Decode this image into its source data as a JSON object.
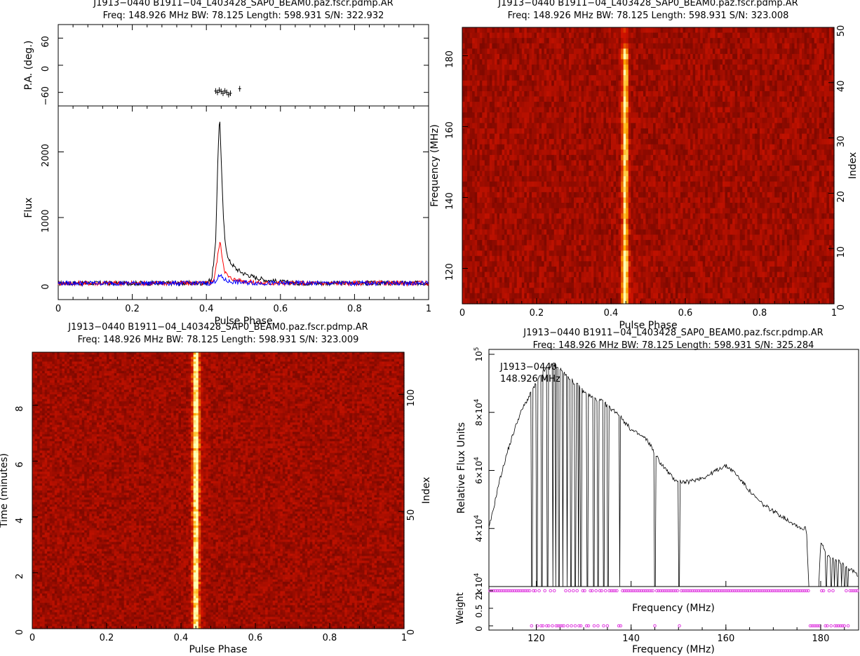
{
  "chart_data": [
    {
      "type": "line",
      "panel": "profile",
      "title": "J1913−0440  B1911−04_L403428_SAP0_BEAM0.paz.fscr.pdmp.AR",
      "subtitle": "Freq:  148.926  MHz  BW:  78.125  Length:  598.931  S/N:  322.932",
      "xlabel": "Pulse Phase",
      "pa_ylabel": "P.A. (deg.)",
      "pa_ticks": [
        "60",
        "0",
        "−60"
      ],
      "pa_ylim": [
        -90,
        90
      ],
      "pa_points": [
        [
          0.425,
          -57
        ],
        [
          0.43,
          -60
        ],
        [
          0.435,
          -55
        ],
        [
          0.44,
          -58
        ],
        [
          0.445,
          -62
        ],
        [
          0.45,
          -57
        ],
        [
          0.455,
          -60
        ],
        [
          0.46,
          -65
        ],
        [
          0.465,
          -62
        ],
        [
          0.49,
          -52
        ]
      ],
      "ylabel": "Flux",
      "ylim": [
        -250,
        2700
      ],
      "xlim": [
        0,
        1
      ],
      "x_ticks": [
        "0",
        "0.2",
        "0.4",
        "0.6",
        "0.8",
        "1"
      ],
      "y_ticks": [
        "0",
        "1000",
        "2000"
      ],
      "series": [
        {
          "color": "#000000",
          "points": [
            [
              0,
              0
            ],
            [
              0.4,
              0
            ],
            [
              0.415,
              80
            ],
            [
              0.425,
              600
            ],
            [
              0.432,
              2100
            ],
            [
              0.436,
              2550
            ],
            [
              0.44,
              1900
            ],
            [
              0.445,
              1100
            ],
            [
              0.45,
              650
            ],
            [
              0.46,
              350
            ],
            [
              0.48,
              220
            ],
            [
              0.5,
              150
            ],
            [
              0.53,
              90
            ],
            [
              0.56,
              50
            ],
            [
              0.6,
              20
            ],
            [
              0.65,
              0
            ],
            [
              1,
              0
            ]
          ]
        },
        {
          "color": "#ff0000",
          "points": [
            [
              0,
              0
            ],
            [
              0.41,
              0
            ],
            [
              0.42,
              60
            ],
            [
              0.428,
              300
            ],
            [
              0.436,
              640
            ],
            [
              0.44,
              520
            ],
            [
              0.445,
              320
            ],
            [
              0.45,
              180
            ],
            [
              0.46,
              90
            ],
            [
              0.48,
              50
            ],
            [
              0.52,
              20
            ],
            [
              0.55,
              0
            ],
            [
              1,
              0
            ]
          ]
        },
        {
          "color": "#0000ff",
          "points": [
            [
              0,
              0
            ],
            [
              0.415,
              0
            ],
            [
              0.425,
              40
            ],
            [
              0.435,
              110
            ],
            [
              0.442,
              90
            ],
            [
              0.45,
              50
            ],
            [
              0.46,
              25
            ],
            [
              0.5,
              10
            ],
            [
              0.55,
              0
            ],
            [
              1,
              0
            ]
          ]
        }
      ]
    },
    {
      "type": "heatmap",
      "panel": "freq-phase",
      "title": "J1913−0440  B1911−04_L403428_SAP0_BEAM0.paz.fscr.pdmp.AR",
      "subtitle": "Freq:  148.926  MHz  BW:  78.125  Length:  598.931  S/N:  323.008",
      "xlabel": "Pulse Phase",
      "ylabel": "Frequency (MHz)",
      "right_label": "Index",
      "xlim": [
        0,
        1
      ],
      "ylim": [
        110,
        188
      ],
      "x_ticks": [
        "0",
        "0.2",
        "0.4",
        "0.6",
        "0.8",
        "1"
      ],
      "y_ticks": [
        "120",
        "140",
        "160",
        "180"
      ],
      "right_ticks": [
        "0",
        "10",
        "20",
        "30",
        "40",
        "50"
      ],
      "pulse_center": 0.438
    },
    {
      "type": "heatmap",
      "panel": "time-phase",
      "title": "J1913−0440  B1911−04_L403428_SAP0_BEAM0.paz.fscr.pdmp.AR",
      "subtitle": "Freq:  148.926  MHz  BW:  78.125  Length:  598.931  S/N:  323.009",
      "xlabel": "Pulse Phase",
      "ylabel": "Time (minutes)",
      "right_label": "Index",
      "xlim": [
        0,
        1
      ],
      "ylim": [
        0,
        9.9
      ],
      "x_ticks": [
        "0",
        "0.2",
        "0.4",
        "0.6",
        "0.8",
        "1"
      ],
      "y_ticks": [
        "0",
        "2",
        "4",
        "6",
        "8"
      ],
      "right_ticks": [
        "0",
        "50",
        "100"
      ],
      "pulse_center": 0.44
    },
    {
      "type": "line",
      "panel": "bandpass",
      "title": "J1913−0440  B1911−04_L403428_SAP0_BEAM0.paz.fscr.pdmp.AR",
      "subtitle": "Freq:  148.926  MHz  BW:  78.125  Length:  598.931  S/N:  325.284",
      "annotation_lines": [
        "J1913−0440",
        "148.926 MHz"
      ],
      "xlabel": "Frequency (MHz)",
      "inner_xlabel": "Frequency (MHz)",
      "ylabel": "Relative Flux Units",
      "weight_label": "Weight",
      "weight_ticks": [
        "0",
        "0.5",
        "1"
      ],
      "xlim": [
        110,
        188
      ],
      "ylim": [
        0,
        100000
      ],
      "x_ticks": [
        "120",
        "140",
        "160",
        "180"
      ],
      "y_ticks": [
        {
          "base": "2×10",
          "exp": "4",
          "value": 20000
        },
        {
          "base": "4×10",
          "exp": "4",
          "value": 40000
        },
        {
          "base": "6×10",
          "exp": "4",
          "value": 60000
        },
        {
          "base": "8×10",
          "exp": "4",
          "value": 80000
        },
        {
          "base": "10",
          "exp": "5",
          "value": 100000
        }
      ],
      "envelope": [
        [
          110,
          40000
        ],
        [
          111,
          47000
        ],
        [
          112,
          55000
        ],
        [
          113,
          61000
        ],
        [
          114,
          67000
        ],
        [
          115,
          72000
        ],
        [
          116,
          77000
        ],
        [
          117,
          81000
        ],
        [
          118,
          84000
        ],
        [
          119,
          87000
        ],
        [
          120,
          90000
        ],
        [
          121,
          93000
        ],
        [
          122,
          95000
        ],
        [
          123,
          96000
        ],
        [
          124,
          96500
        ],
        [
          125,
          95000
        ],
        [
          126,
          93000
        ],
        [
          127,
          92000
        ],
        [
          128,
          90000
        ],
        [
          129,
          89000
        ],
        [
          130,
          87000
        ],
        [
          131,
          86000
        ],
        [
          132,
          85000
        ],
        [
          133,
          84000
        ],
        [
          134,
          84000
        ],
        [
          135,
          82000
        ],
        [
          136,
          81000
        ],
        [
          137,
          80000
        ],
        [
          138,
          78000
        ],
        [
          139,
          76000
        ],
        [
          140,
          74000
        ],
        [
          141,
          73000
        ],
        [
          142,
          72000
        ],
        [
          143,
          71000
        ],
        [
          144,
          69000
        ],
        [
          145,
          66000
        ],
        [
          146,
          63000
        ],
        [
          147,
          61000
        ],
        [
          148,
          59000
        ],
        [
          149,
          57000
        ],
        [
          150,
          56500
        ],
        [
          151,
          56000
        ],
        [
          152,
          56000
        ],
        [
          153,
          56500
        ],
        [
          154,
          57000
        ],
        [
          155,
          57500
        ],
        [
          156,
          58000
        ],
        [
          157,
          59000
        ],
        [
          158,
          60000
        ],
        [
          159,
          61000
        ],
        [
          160,
          61500
        ],
        [
          161,
          60500
        ],
        [
          162,
          59000
        ],
        [
          163,
          57000
        ],
        [
          164,
          55000
        ],
        [
          165,
          53000
        ],
        [
          166,
          51000
        ],
        [
          167,
          49500
        ],
        [
          168,
          48000
        ],
        [
          169,
          47000
        ],
        [
          170,
          46000
        ],
        [
          171,
          45000
        ],
        [
          172,
          44000
        ],
        [
          173,
          43000
        ],
        [
          174,
          42000
        ],
        [
          175,
          41000
        ],
        [
          176,
          40000
        ],
        [
          177,
          40000
        ],
        [
          178,
          0
        ],
        [
          179,
          0
        ],
        [
          180,
          35000
        ],
        [
          181,
          32000
        ],
        [
          182,
          30000
        ],
        [
          183,
          29000
        ],
        [
          184,
          28500
        ],
        [
          185,
          28000
        ],
        [
          186,
          26000
        ],
        [
          187,
          25000
        ],
        [
          188,
          24000
        ]
      ],
      "flagged_channels": [
        119.1,
        120.1,
        121.2,
        122.4,
        123.5,
        124.1,
        124.8,
        125.6,
        126.5,
        127.3,
        128.2,
        128.9,
        129.4,
        130.8,
        132.1,
        133.0,
        134.2,
        135.1,
        137.6,
        145.0,
        150.1,
        177.7,
        179.6,
        181.2,
        182.2,
        182.9,
        183.6,
        184.4,
        185.1,
        185.7
      ]
    }
  ]
}
